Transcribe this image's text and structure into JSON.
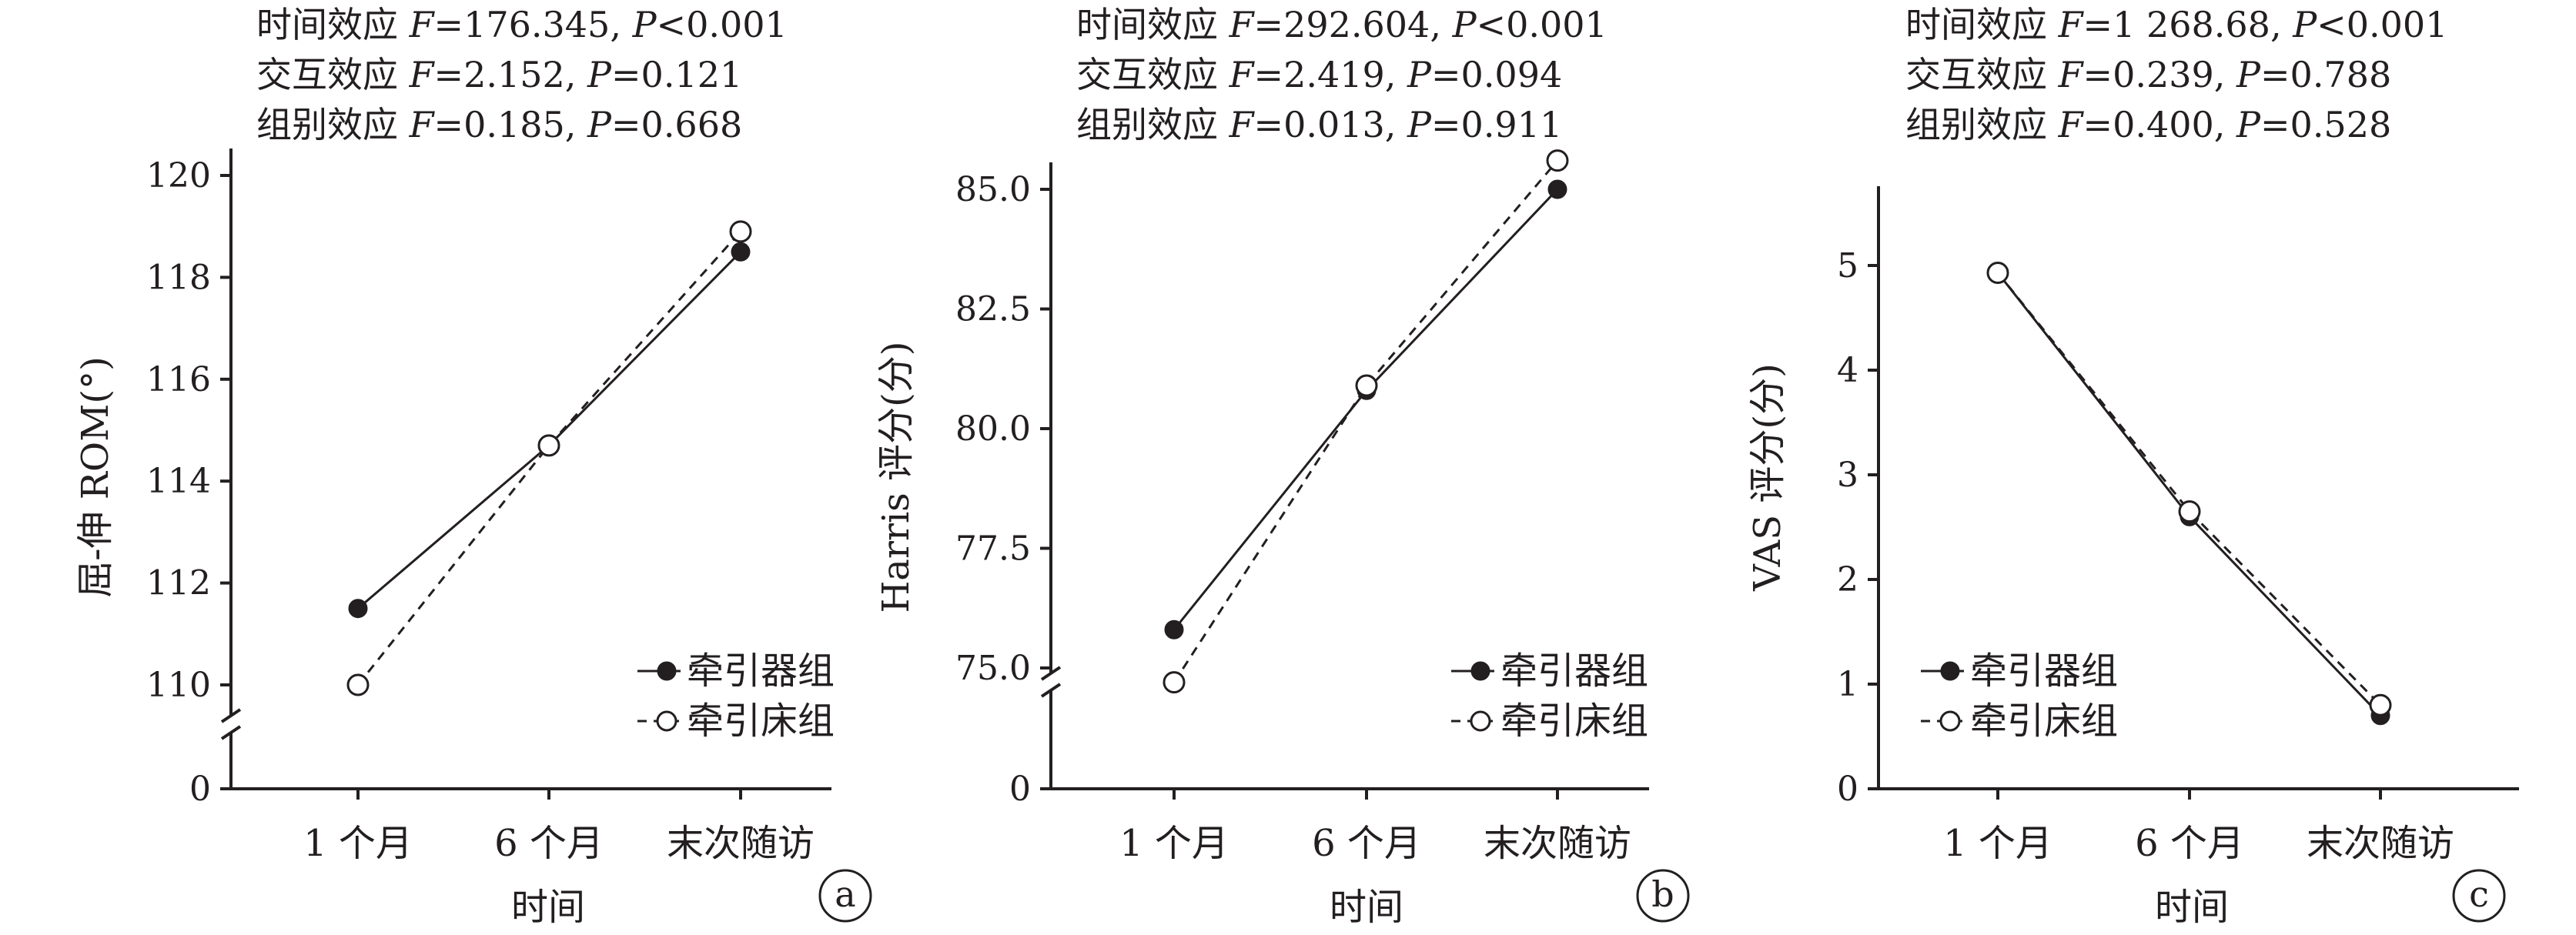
{
  "chart_data": [
    {
      "type": "line",
      "panel_label": "a",
      "stats": [
        {
          "label": "时间效应",
          "f": "176.345",
          "p_rel": "<",
          "p": "0.001"
        },
        {
          "label": "交互效应",
          "f": "2.152",
          "p_rel": "=",
          "p": "0.121"
        },
        {
          "label": "组别效应",
          "f": "0.185",
          "p_rel": "=",
          "p": "0.668"
        }
      ],
      "categories": [
        "1 个月",
        "6 个月",
        "末次随访"
      ],
      "xlabel": "时间",
      "ylabel": "屈-伸 ROM(°)",
      "ylim": [
        110,
        120
      ],
      "axis_break": true,
      "yticks": [
        {
          "v": 0,
          "label": "0"
        },
        {
          "v": 110,
          "label": "110"
        },
        {
          "v": 112,
          "label": "112"
        },
        {
          "v": 114,
          "label": "114"
        },
        {
          "v": 116,
          "label": "116"
        },
        {
          "v": 118,
          "label": "118"
        },
        {
          "v": 120,
          "label": "120"
        }
      ],
      "legend_position": "bottom-right",
      "series": [
        {
          "name": "牵引器组",
          "marker": "filled",
          "line": "solid",
          "values": [
            111.5,
            114.7,
            118.5
          ]
        },
        {
          "name": "牵引床组",
          "marker": "open",
          "line": "dashed",
          "values": [
            110.0,
            114.7,
            118.9
          ]
        }
      ]
    },
    {
      "type": "line",
      "panel_label": "b",
      "stats": [
        {
          "label": "时间效应",
          "f": "292.604",
          "p_rel": "<",
          "p": "0.001"
        },
        {
          "label": "交互效应",
          "f": "2.419",
          "p_rel": "=",
          "p": "0.094"
        },
        {
          "label": "组别效应",
          "f": "0.013",
          "p_rel": "=",
          "p": "0.911"
        }
      ],
      "categories": [
        "1 个月",
        "6 个月",
        "末次随访"
      ],
      "xlabel": "时间",
      "ylabel": "Harris 评分(分)",
      "ylim": [
        75,
        85
      ],
      "axis_break": true,
      "yticks": [
        {
          "v": 0,
          "label": "0"
        },
        {
          "v": 75,
          "label": "75.0"
        },
        {
          "v": 77.5,
          "label": "77.5"
        },
        {
          "v": 80,
          "label": "80.0"
        },
        {
          "v": 82.5,
          "label": "82.5"
        },
        {
          "v": 85,
          "label": "85.0"
        }
      ],
      "legend_position": "bottom-right",
      "series": [
        {
          "name": "牵引器组",
          "marker": "filled",
          "line": "solid",
          "values": [
            75.8,
            80.8,
            85.0
          ]
        },
        {
          "name": "牵引床组",
          "marker": "open",
          "line": "dashed",
          "values": [
            74.7,
            80.9,
            85.6
          ]
        }
      ]
    },
    {
      "type": "line",
      "panel_label": "c",
      "stats": [
        {
          "label": "时间效应",
          "f": "1 268.68",
          "p_rel": "<",
          "p": "0.001"
        },
        {
          "label": "交互效应",
          "f": "0.239",
          "p_rel": "=",
          "p": "0.788"
        },
        {
          "label": "组别效应",
          "f": "0.400",
          "p_rel": "=",
          "p": "0.528"
        }
      ],
      "categories": [
        "1 个月",
        "6 个月",
        "末次随访"
      ],
      "xlabel": "时间",
      "ylabel": "VAS 评分(分)",
      "ylim": [
        0,
        5.5
      ],
      "axis_break": false,
      "yticks": [
        {
          "v": 0,
          "label": "0"
        },
        {
          "v": 1,
          "label": "1"
        },
        {
          "v": 2,
          "label": "2"
        },
        {
          "v": 3,
          "label": "3"
        },
        {
          "v": 4,
          "label": "4"
        },
        {
          "v": 5,
          "label": "5"
        }
      ],
      "legend_position": "bottom-left",
      "series": [
        {
          "name": "牵引器组",
          "marker": "filled",
          "line": "solid",
          "values": [
            4.93,
            2.6,
            0.7
          ]
        },
        {
          "name": "牵引床组",
          "marker": "open",
          "line": "dashed",
          "values": [
            4.93,
            2.65,
            0.8
          ]
        }
      ]
    }
  ]
}
